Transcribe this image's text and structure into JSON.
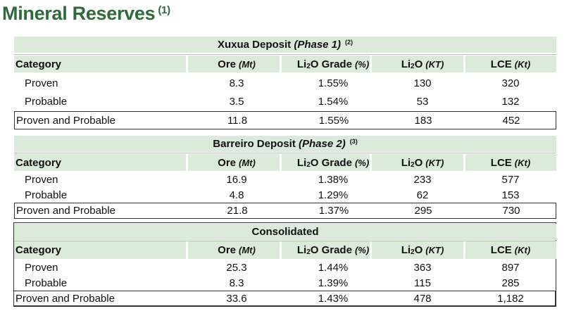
{
  "title": "Mineral Reserves",
  "title_note": "(1)",
  "columns": {
    "category": "Category",
    "ore": "Ore",
    "ore_unit": "(Mt)",
    "grade_pre": "Li",
    "grade_sub": "2",
    "grade_post": "O Grade",
    "grade_unit": "(%)",
    "li2o_pre": "Li",
    "li2o_sub": "2",
    "li2o_post": "O",
    "li2o_unit": "(KT)",
    "lce": "LCE",
    "lce_unit": "(Kt)"
  },
  "sections": [
    {
      "title": "Xuxua Deposit",
      "phase": "(Phase 1)",
      "note": "(2)",
      "rows": [
        {
          "category": "Proven",
          "ore": "8.3",
          "grade": "1.55%",
          "li2o": "130",
          "lce": "320"
        },
        {
          "category": "Probable",
          "ore": "3.5",
          "grade": "1.54%",
          "li2o": "53",
          "lce": "132"
        }
      ],
      "total": {
        "category": "Proven and Probable",
        "ore": "11.8",
        "grade": "1.55%",
        "li2o": "183",
        "lce": "452"
      }
    },
    {
      "title": "Barreiro Deposit",
      "phase": "(Phase 2)",
      "note": "(3)",
      "rows": [
        {
          "category": "Proven",
          "ore": "16.9",
          "grade": "1.38%",
          "li2o": "233",
          "lce": "577"
        },
        {
          "category": "Probable",
          "ore": "4.8",
          "grade": "1.29%",
          "li2o": "62",
          "lce": "153"
        }
      ],
      "total": {
        "category": "Proven and Probable",
        "ore": "21.8",
        "grade": "1.37%",
        "li2o": "295",
        "lce": "730"
      }
    },
    {
      "title": "Consolidated",
      "rows": [
        {
          "category": "Proven",
          "ore": "25.3",
          "grade": "1.44%",
          "li2o": "363",
          "lce": "897"
        },
        {
          "category": "Probable",
          "ore": "8.3",
          "grade": "1.39%",
          "li2o": "115",
          "lce": "285"
        }
      ],
      "total": {
        "category": "Proven and Probable",
        "ore": "33.6",
        "grade": "1.43%",
        "li2o": "478",
        "lce": "1,182"
      }
    }
  ],
  "colors": {
    "title_green": "#2e6a3a",
    "band_green": "#dceadb"
  }
}
